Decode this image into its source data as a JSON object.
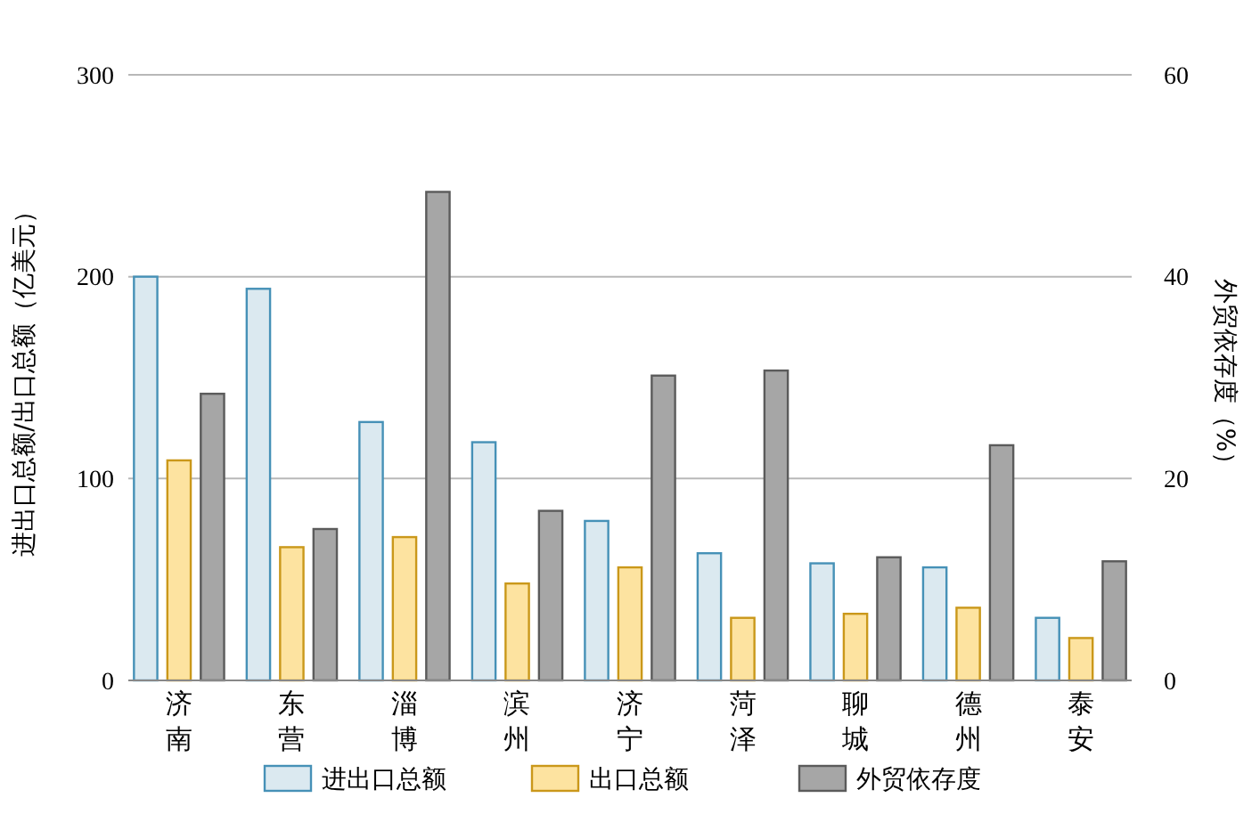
{
  "chart_data": {
    "type": "bar",
    "categories": [
      "济南",
      "东营",
      "淄博",
      "滨州",
      "济宁",
      "菏泽",
      "聊城",
      "德州",
      "泰安"
    ],
    "ylabel": "进出口总额/出口总额（亿美元）",
    "y2label": "外贸依存度（%）",
    "ylim": [
      0,
      300
    ],
    "yticks": [
      0,
      100,
      200,
      300
    ],
    "y2lim": [
      0,
      60
    ],
    "y2ticks": [
      0,
      20,
      40,
      60
    ],
    "grid": "y",
    "legend": "bottom",
    "series": [
      {
        "name": "进出口总额",
        "color": "#dbe9f0",
        "values": [
          200,
          194,
          128,
          118,
          79,
          63,
          58,
          56,
          31
        ]
      },
      {
        "name": "出口总额",
        "color": "#fde3a0",
        "values": [
          109,
          66,
          71,
          48,
          56,
          31,
          33,
          36,
          21
        ]
      },
      {
        "name": "外贸依存度",
        "color": "#a6a6a6",
        "axis": "y2",
        "values": [
          28.4,
          15.0,
          48.4,
          16.8,
          30.2,
          30.7,
          12.2,
          23.3,
          11.8
        ]
      }
    ]
  }
}
